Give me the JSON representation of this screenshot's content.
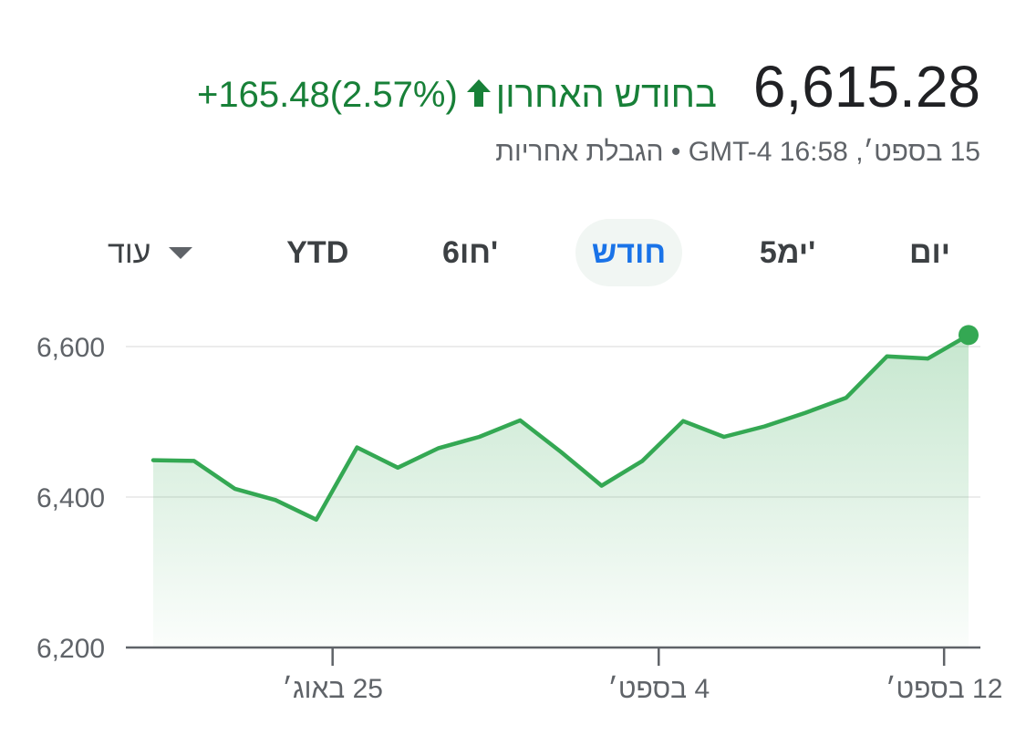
{
  "quote": {
    "price": "6,615.28",
    "change_value": "+165.48",
    "change_percent": "(2.57%)",
    "period_label": "בחודש האחרון",
    "timestamp": "15 בספט׳, 16:58 GMT-4",
    "separator": "•",
    "disclaimer": "הגבלת אחריות",
    "accent_color": "#188038",
    "arrow_icon": "arrow-up-icon"
  },
  "range_tabs": {
    "items": [
      {
        "label": "יום",
        "active": false
      },
      {
        "label": "5ימ'",
        "active": false
      },
      {
        "label": "חודש",
        "active": true
      },
      {
        "label": "6חו'",
        "active": false
      },
      {
        "label": "YTD",
        "active": false
      }
    ],
    "more_label": "עוד",
    "more_icon": "caret-down-icon"
  },
  "chart_data": {
    "type": "area",
    "title": "",
    "xlabel": "",
    "ylabel": "",
    "x_ticks": [
      {
        "label": "25 באוג׳",
        "index": 4.4
      },
      {
        "label": "4 בספט׳",
        "index": 12.4
      },
      {
        "label": "12 בספט׳",
        "index": 19.4
      }
    ],
    "y_ticks": [
      6200,
      6400,
      6600
    ],
    "y_tick_labels": [
      "6,200",
      "6,400",
      "6,600"
    ],
    "ylim": [
      6200,
      6620
    ],
    "values": [
      6449,
      6448,
      6411,
      6396,
      6370,
      6466,
      6439,
      6465,
      6480,
      6502,
      6460,
      6415,
      6448,
      6501,
      6480,
      6494,
      6512,
      6532,
      6587,
      6584,
      6615.28
    ],
    "grid": true,
    "line_color": "#34a853",
    "fill_color": "#34a853",
    "last_point_marker": true
  }
}
